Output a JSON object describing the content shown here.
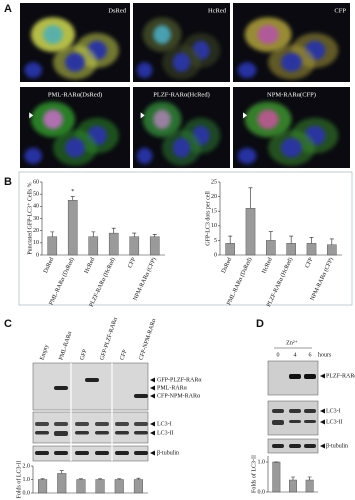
{
  "panel_labels": [
    "A",
    "B",
    "C",
    "D"
  ],
  "panel_a": {
    "images": [
      "DsRed",
      "HcRed",
      "CFP",
      "PML-RARα(DsRed)",
      "PLZF-RARα(HcRed)",
      "NPM-RARα(CFP)"
    ]
  },
  "panel_c": {
    "lanes": [
      "Empty",
      "PML-RARα",
      "GFP",
      "GFP-PLZF-RARα",
      "CFP",
      "CFP-NPM-RARα"
    ],
    "blot_labels": [
      "GFP-PLZF-RARα",
      "PML-RARα",
      "CFP-NPM-RARα",
      "LC3-I",
      "LC3-II",
      "β-tubulin"
    ]
  },
  "panel_d": {
    "treatment": "Zn²⁺",
    "time_unit": "hours",
    "times": [
      "0",
      "4",
      "6"
    ],
    "blot_labels": [
      "PLZF-RARα",
      "LC3-I",
      "LC3-II",
      "β-tubulin"
    ]
  },
  "chart_data": [
    {
      "type": "bar",
      "y_label": "Punctated GFP-LC3⁺ Cells %",
      "categories": [
        "DsRed",
        "PML-RARα (DsRed)",
        "HcRed",
        "PLZF-RARα (HcRed)",
        "CFP",
        "NPM-RARα (CFP)"
      ],
      "values": [
        15,
        45,
        15,
        18,
        15,
        15
      ],
      "errors": [
        4,
        3,
        4,
        4,
        3,
        2
      ],
      "color": "#9a9a9a",
      "ylim": [
        0,
        60
      ],
      "yticks": [
        0,
        10,
        20,
        30,
        40,
        50,
        60
      ],
      "annotation": "*"
    },
    {
      "type": "bar",
      "y_label": "GFP-LC3 dots per cell",
      "categories": [
        "DsRed",
        "PML-RARα (DsRed)",
        "HcRed",
        "PLZF-RARα (HcRed)",
        "CFP",
        "NPM-RARα (CFP)"
      ],
      "values": [
        4,
        16,
        5,
        4,
        4,
        3.5
      ],
      "errors": [
        2.5,
        7,
        3,
        2.5,
        2,
        2
      ],
      "color": "#9a9a9a",
      "ylim": [
        0,
        25
      ],
      "yticks": [
        0,
        5,
        10,
        15,
        20,
        25
      ]
    },
    {
      "type": "bar",
      "y_label": "Folds of LC3-II",
      "values": [
        1,
        1.45,
        1,
        1,
        1,
        1
      ],
      "errors": [
        0.05,
        0.2,
        0.05,
        0.05,
        0.05,
        0.1
      ],
      "color": "#9a9a9a",
      "ylim": [
        0,
        2
      ],
      "yticks": [
        {
          "value": 0,
          "label": "0.0"
        },
        {
          "value": 1,
          "label": "1.0"
        },
        {
          "value": 2,
          "label": "2.0"
        }
      ]
    },
    {
      "type": "bar",
      "y_label": "Folds of LC3-II",
      "values": [
        1,
        0.4,
        0.4
      ],
      "errors": [
        0,
        0.1,
        0.1
      ],
      "color": "#9a9a9a",
      "ylim": [
        0,
        1.2
      ],
      "yticks": [
        {
          "value": 0,
          "label": "0.0"
        },
        {
          "value": 1,
          "label": "1.0"
        }
      ]
    }
  ]
}
